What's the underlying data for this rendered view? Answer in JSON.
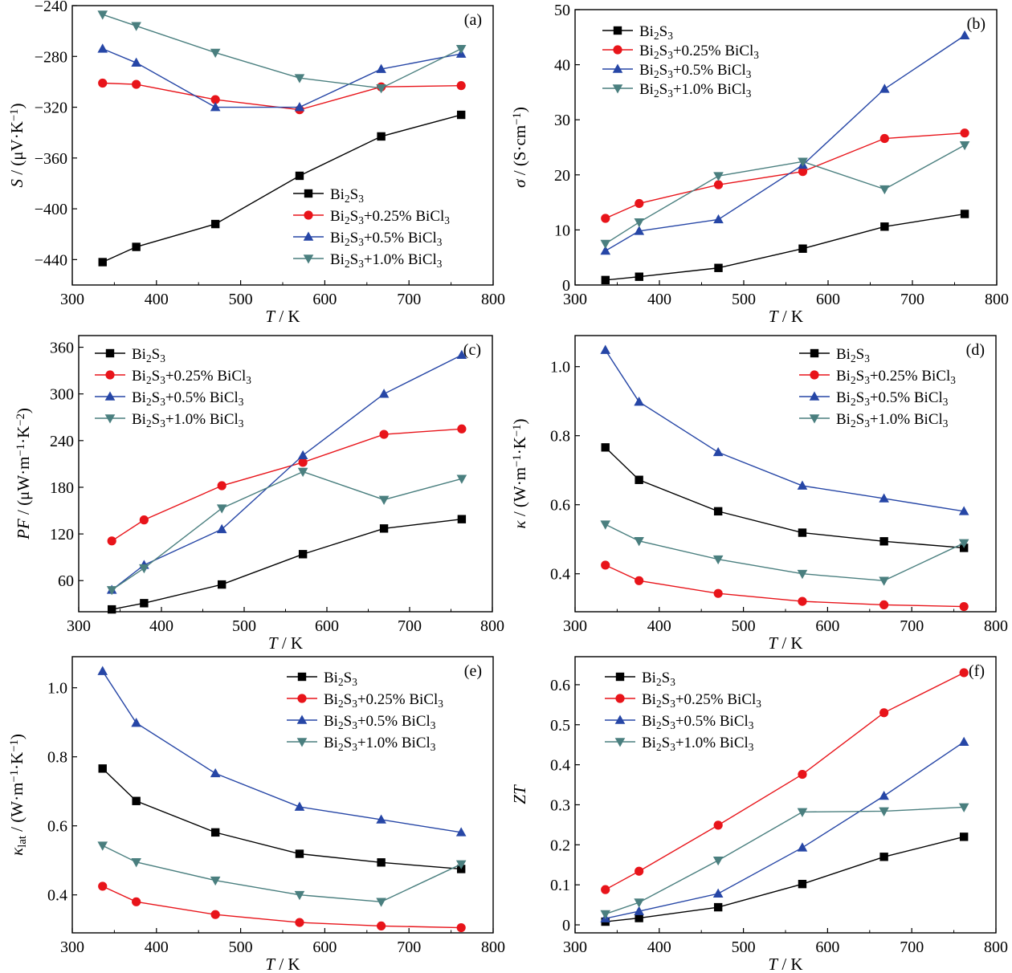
{
  "legend_labels": [
    "Bi₂S₃",
    "Bi₂S₃+0.25% BiCl₃",
    "Bi₂S₃+0.5% BiCl₃",
    "Bi₂S₃+1.0% BiCl₃"
  ],
  "series_colors": [
    "#000000",
    "#e8141a",
    "#2646a6",
    "#4a7f7f"
  ],
  "series_markers": [
    "square",
    "circle",
    "triangle-up",
    "triangle-down"
  ],
  "chart_data": [
    {
      "type": "line",
      "panel_label": "(a)",
      "xlabel": "T / K",
      "ylabel": "S / (μV·K⁻¹)",
      "xlim": [
        300,
        800
      ],
      "ylim": [
        -460,
        -240
      ],
      "xticks": [
        300,
        400,
        500,
        600,
        700,
        800
      ],
      "yticks": [
        -440,
        -400,
        -360,
        -320,
        -280,
        -240
      ],
      "legend_position": "center-right",
      "x": [
        336,
        376,
        470,
        570,
        667,
        762
      ],
      "series": [
        {
          "name": "Bi₂S₃",
          "values": [
            -442,
            -430,
            -412,
            -374,
            -343,
            -326
          ]
        },
        {
          "name": "Bi₂S₃+0.25% BiCl₃",
          "values": [
            -301,
            -302,
            -314,
            -322,
            -304,
            -303
          ]
        },
        {
          "name": "Bi₂S₃+0.5% BiCl₃",
          "values": [
            -274,
            -285,
            -320,
            -320,
            -290,
            -278
          ]
        },
        {
          "name": "Bi₂S₃+1.0% BiCl₃",
          "values": [
            -247,
            -256,
            -277,
            -297,
            -305,
            -274
          ]
        }
      ]
    },
    {
      "type": "line",
      "panel_label": "(b)",
      "xlabel": "T / K",
      "ylabel": "σ / (S·cm⁻¹)",
      "xlim": [
        300,
        800
      ],
      "ylim": [
        0,
        50
      ],
      "xticks": [
        300,
        400,
        500,
        600,
        700,
        800
      ],
      "yticks": [
        0,
        10,
        20,
        30,
        40,
        50
      ],
      "legend_position": "top-left",
      "x": [
        336,
        376,
        470,
        570,
        667,
        762
      ],
      "series": [
        {
          "name": "Bi₂S₃",
          "values": [
            0.9,
            1.5,
            3.1,
            6.6,
            10.6,
            12.9
          ]
        },
        {
          "name": "Bi₂S₃+0.25% BiCl₃",
          "values": [
            12.1,
            14.8,
            18.2,
            20.6,
            26.6,
            27.6
          ]
        },
        {
          "name": "Bi₂S₃+0.5% BiCl₃",
          "values": [
            6.2,
            9.8,
            11.9,
            21.8,
            35.6,
            45.3
          ]
        },
        {
          "name": "Bi₂S₃+1.0% BiCl₃",
          "values": [
            7.5,
            11.4,
            19.8,
            22.4,
            17.4,
            25.4
          ]
        }
      ]
    },
    {
      "type": "line",
      "panel_label": "(c)",
      "xlabel": "T / K",
      "ylabel": "PF / (μW·m⁻¹·K⁻²)",
      "xlim": [
        300,
        800
      ],
      "ylim": [
        20,
        375
      ],
      "xticks": [
        300,
        400,
        500,
        600,
        700,
        800
      ],
      "yticks": [
        60,
        120,
        180,
        240,
        300,
        360
      ],
      "legend_position": "top-left",
      "x": [
        340,
        379,
        473,
        571,
        669,
        763
      ],
      "series": [
        {
          "name": "Bi₂S₃",
          "values": [
            23,
            31,
            55,
            94,
            127,
            139
          ]
        },
        {
          "name": "Bi₂S₃+0.25% BiCl₃",
          "values": [
            111,
            138,
            182,
            212,
            248,
            255
          ]
        },
        {
          "name": "Bi₂S₃+0.5% BiCl₃",
          "values": [
            48,
            80,
            126,
            221,
            300,
            350
          ]
        },
        {
          "name": "Bi₂S₃+1.0% BiCl₃",
          "values": [
            48,
            76,
            153,
            200,
            164,
            191
          ]
        }
      ]
    },
    {
      "type": "line",
      "panel_label": "(d)",
      "xlabel": "T / K",
      "ylabel": "κ / (W·m⁻¹·K⁻¹)",
      "xlim": [
        300,
        800
      ],
      "ylim": [
        0.29,
        1.09
      ],
      "xticks": [
        300,
        400,
        500,
        600,
        700,
        800
      ],
      "yticks": [
        0.4,
        0.6,
        0.8,
        1.0
      ],
      "legend_position": "top-right",
      "x": [
        336,
        376,
        470,
        570,
        667,
        762
      ],
      "series": [
        {
          "name": "Bi₂S₃",
          "values": [
            0.766,
            0.672,
            0.581,
            0.519,
            0.494,
            0.475
          ]
        },
        {
          "name": "Bi₂S₃+0.25% BiCl₃",
          "values": [
            0.425,
            0.38,
            0.343,
            0.32,
            0.31,
            0.305
          ]
        },
        {
          "name": "Bi₂S₃+0.5% BiCl₃",
          "values": [
            1.048,
            0.898,
            0.752,
            0.655,
            0.618,
            0.581
          ]
        },
        {
          "name": "Bi₂S₃+1.0% BiCl₃",
          "values": [
            0.543,
            0.495,
            0.442,
            0.4,
            0.38,
            0.489
          ]
        }
      ]
    },
    {
      "type": "line",
      "panel_label": "(e)",
      "xlabel": "T / K",
      "ylabel": "κlat / (W·m⁻¹·K⁻¹)",
      "xlim": [
        300,
        800
      ],
      "ylim": [
        0.29,
        1.09
      ],
      "xticks": [
        300,
        400,
        500,
        600,
        700,
        800
      ],
      "yticks": [
        0.4,
        0.6,
        0.8,
        1.0
      ],
      "legend_position": "top-right",
      "x": [
        336,
        376,
        470,
        570,
        667,
        762
      ],
      "series": [
        {
          "name": "Bi₂S₃",
          "values": [
            0.766,
            0.672,
            0.581,
            0.519,
            0.494,
            0.475
          ]
        },
        {
          "name": "Bi₂S₃+0.25% BiCl₃",
          "values": [
            0.425,
            0.38,
            0.343,
            0.32,
            0.31,
            0.305
          ]
        },
        {
          "name": "Bi₂S₃+0.5% BiCl₃",
          "values": [
            1.048,
            0.898,
            0.752,
            0.655,
            0.618,
            0.581
          ]
        },
        {
          "name": "Bi₂S₃+1.0% BiCl₃",
          "values": [
            0.543,
            0.495,
            0.442,
            0.4,
            0.38,
            0.489
          ]
        }
      ]
    },
    {
      "type": "line",
      "panel_label": "(f)",
      "xlabel": "T / K",
      "ylabel": "ZT",
      "xlim": [
        300,
        800
      ],
      "ylim": [
        -0.02,
        0.67
      ],
      "xticks": [
        300,
        400,
        500,
        600,
        700,
        800
      ],
      "yticks": [
        0,
        0.1,
        0.2,
        0.3,
        0.4,
        0.5,
        0.6
      ],
      "legend_position": "top-left",
      "x": [
        336,
        376,
        470,
        570,
        667,
        762
      ],
      "series": [
        {
          "name": "Bi₂S₃",
          "values": [
            0.008,
            0.017,
            0.044,
            0.102,
            0.17,
            0.22
          ]
        },
        {
          "name": "Bi₂S₃+0.25% BiCl₃",
          "values": [
            0.088,
            0.134,
            0.249,
            0.376,
            0.53,
            0.63
          ]
        },
        {
          "name": "Bi₂S₃+0.5% BiCl₃",
          "values": [
            0.016,
            0.034,
            0.078,
            0.193,
            0.322,
            0.457
          ]
        },
        {
          "name": "Bi₂S₃+1.0% BiCl₃",
          "values": [
            0.027,
            0.056,
            0.161,
            0.282,
            0.284,
            0.294
          ]
        }
      ]
    }
  ]
}
